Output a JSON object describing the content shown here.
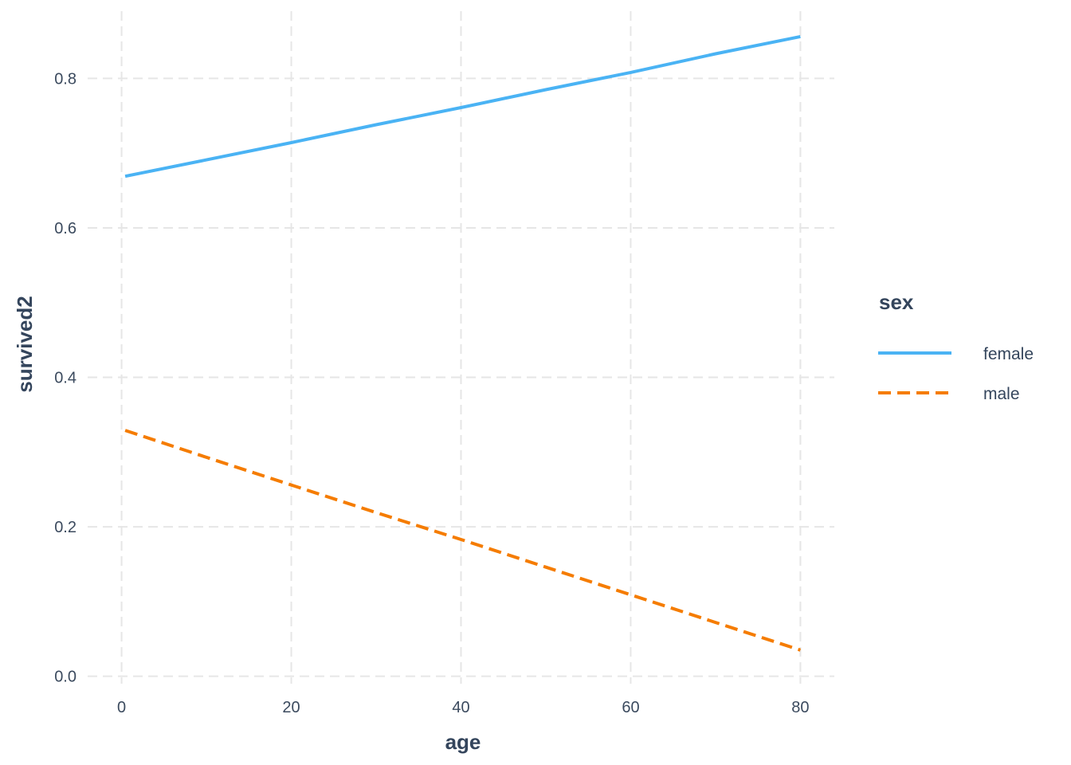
{
  "chart_data": {
    "type": "line",
    "xlabel": "age",
    "ylabel": "survived2",
    "xlim": [
      -4,
      84
    ],
    "ylim": [
      -0.01,
      0.89
    ],
    "x_ticks": [
      0,
      20,
      40,
      60,
      80
    ],
    "y_ticks": [
      0.0,
      0.2,
      0.4,
      0.6,
      0.8
    ],
    "x_tick_labels": [
      "0",
      "20",
      "40",
      "60",
      "80"
    ],
    "y_tick_labels": [
      "0.0",
      "0.2",
      "0.4",
      "0.6",
      "0.8"
    ],
    "grid": true,
    "legend": {
      "title": "sex",
      "placement": "right"
    },
    "series": [
      {
        "name": "female",
        "color": "#4ab3f4",
        "linetype": "solid",
        "x": [
          0.42,
          10,
          20,
          30,
          40,
          50,
          60,
          70,
          80
        ],
        "y": [
          0.669,
          0.691,
          0.714,
          0.738,
          0.761,
          0.785,
          0.808,
          0.833,
          0.856
        ]
      },
      {
        "name": "male",
        "color": "#f57c00",
        "linetype": "dashed",
        "x": [
          0.42,
          10,
          20,
          30,
          40,
          50,
          60,
          70,
          80
        ],
        "y": [
          0.329,
          0.293,
          0.256,
          0.219,
          0.183,
          0.146,
          0.109,
          0.072,
          0.035
        ]
      }
    ]
  }
}
